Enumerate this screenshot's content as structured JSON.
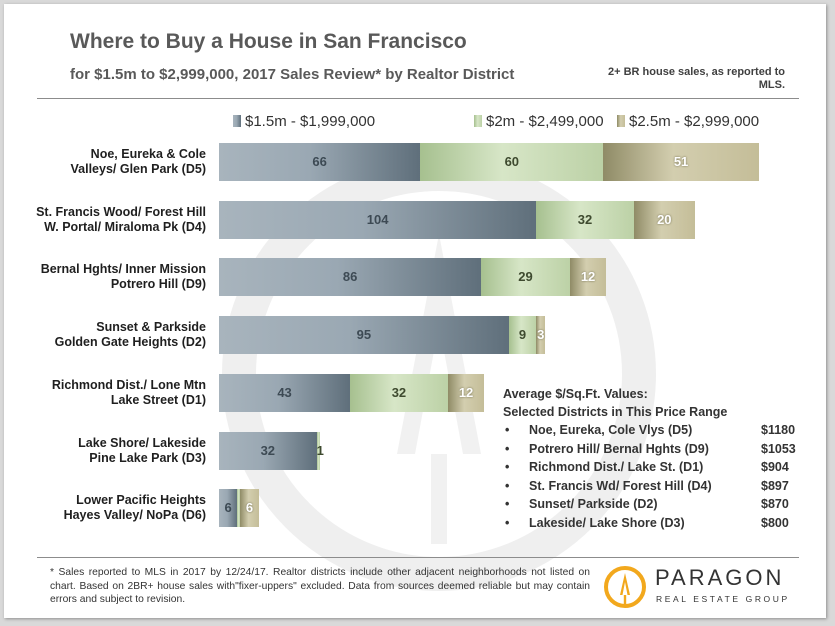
{
  "title": "Where to Buy a House in San Francisco",
  "subtitle": "for $1.5m to $2,999,000, 2017 Sales Review* by Realtor District",
  "note": "2+ BR house sales, as reported to MLS.",
  "colors": {
    "series_0": "#7d8c97",
    "series_1": "#c5d8b1",
    "series_2": "#b5ad88"
  },
  "chart_data": {
    "type": "bar",
    "orientation": "horizontal",
    "stacked": true,
    "categories": [
      [
        "Noe, Eureka & Cole",
        "Valleys/ Glen Park (D5)"
      ],
      [
        "St. Francis Wood/ Forest Hill",
        "W. Portal/ Miraloma Pk (D4)"
      ],
      [
        "Bernal Hghts/ Inner Mission",
        "Potrero Hill (D9)"
      ],
      [
        "Sunset & Parkside",
        "Golden Gate Heights (D2)"
      ],
      [
        "Richmond Dist./ Lone Mtn",
        "Lake Street (D1)"
      ],
      [
        "Lake Shore/ Lakeside",
        "Pine Lake Park (D3)"
      ],
      [
        "Lower Pacific Heights",
        "Hayes Valley/ NoPa (D6)"
      ]
    ],
    "series": [
      {
        "name": "$1.5m - $1,999,000",
        "values": [
          66,
          104,
          86,
          95,
          43,
          32,
          6
        ]
      },
      {
        "name": "$2m - $2,499,000",
        "values": [
          60,
          32,
          29,
          9,
          32,
          1,
          1
        ]
      },
      {
        "name": "$2.5m - $2,999,000",
        "values": [
          51,
          20,
          12,
          3,
          12,
          0,
          6
        ]
      }
    ],
    "data_labels": [
      [
        "66",
        "104",
        "86",
        "95",
        "43",
        "32",
        "6"
      ],
      [
        "60",
        "32",
        "29",
        "9",
        "32",
        "1",
        ""
      ],
      [
        "51",
        "20",
        "12",
        "3",
        "12",
        "",
        "6"
      ]
    ],
    "legend_position": "top",
    "grid": false
  },
  "infobox": {
    "heading_line1": "Average $/Sq.Ft. Values:",
    "heading_line2": "Selected Districts in This Price Range",
    "items": [
      {
        "bullet": "•",
        "name": "Noe, Eureka, Cole Vlys (D5)",
        "value": "$1180"
      },
      {
        "bullet": "•",
        "name": "Potrero Hill/ Bernal Hghts (D9)",
        "value": "$1053"
      },
      {
        "bullet": "•",
        "name": "Richmond Dist./ Lake St. (D1)",
        "value": "$904"
      },
      {
        "bullet": "•",
        "name": "St. Francis Wd/ Forest Hill (D4)",
        "value": "$897"
      },
      {
        "bullet": "•",
        "name": "Sunset/ Parkside (D2)",
        "value": "$870"
      },
      {
        "bullet": "•",
        "name": "Lakeside/ Lake Shore (D3)",
        "value": "$800"
      }
    ]
  },
  "footer": "* Sales reported to MLS in 2017 by 12/24/17. Realtor districts include other adjacent neighborhoods not listed on chart. Based on 2BR+ house sales with\"fixer-uppers\" excluded. Data from sources deemed reliable but may contain errors and subject to revision.",
  "logo": {
    "name": "PARAGON",
    "tagline": "REAL ESTATE GROUP"
  }
}
